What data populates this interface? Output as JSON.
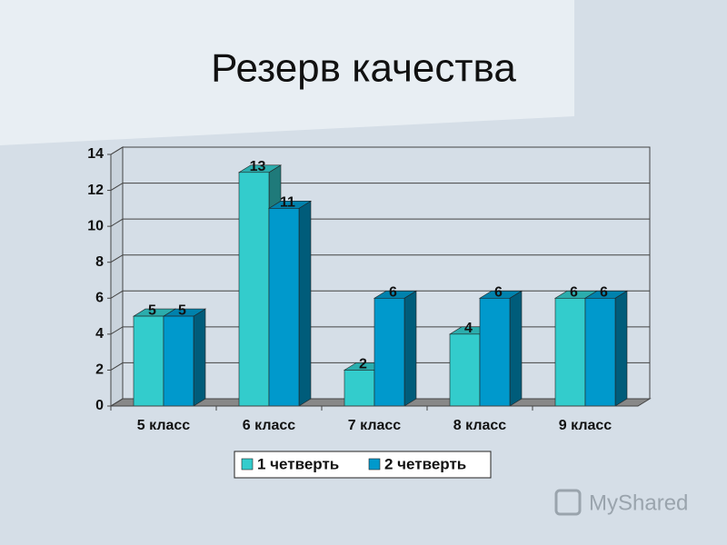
{
  "chart_data": {
    "type": "bar3d",
    "title": "Резерв качества",
    "categories": [
      "5 класс",
      "6 класс",
      "7 класс",
      "8 класс",
      "9 класс"
    ],
    "series": [
      {
        "name": "1 четверть",
        "color": "#33cccc",
        "values": [
          5,
          13,
          2,
          4,
          6
        ]
      },
      {
        "name": "2 четверть",
        "color": "#0099cc",
        "values": [
          5,
          11,
          6,
          6,
          6
        ]
      }
    ],
    "ylim": [
      0,
      14
    ],
    "yticks": [
      0,
      2,
      4,
      6,
      8,
      10,
      12,
      14
    ],
    "grid": true,
    "legend": "bottom",
    "watermark": "MyShared"
  }
}
